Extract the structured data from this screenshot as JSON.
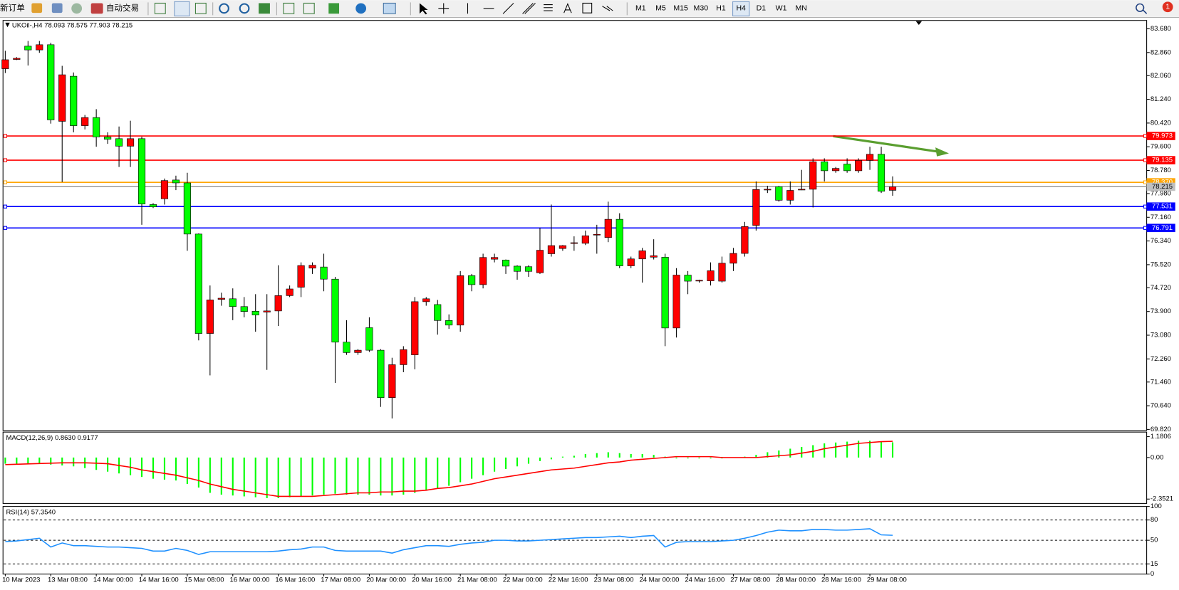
{
  "toolbar": {
    "new_order": "新订单",
    "auto_trading": "自动交易",
    "timeframes": [
      "M1",
      "M5",
      "M15",
      "M30",
      "H1",
      "H4",
      "D1",
      "W1",
      "MN"
    ],
    "selected": "H4",
    "alerts": 1
  },
  "chart_data": [
    {
      "type": "candlestick",
      "title": "UKOil-,H4 78.093 78.575 77.903 78.215",
      "categories": [
        "10 Mar 2023",
        null,
        null,
        null,
        "13 Mar 08:00",
        null,
        null,
        null,
        "14 Mar 00:00",
        null,
        null,
        null,
        "14 Mar 16:00",
        null,
        null,
        null,
        "15 Mar 08:00",
        null,
        null,
        null,
        "16 Mar 00:00",
        null,
        null,
        null,
        "16 Mar 16:00",
        null,
        null,
        null,
        "17 Mar 08:00",
        null,
        null,
        null,
        "20 Mar 00:00",
        null,
        null,
        null,
        "20 Mar 16:00",
        null,
        null,
        null,
        "21 Mar 08:00",
        null,
        null,
        null,
        "22 Mar 00:00",
        null,
        null,
        null,
        "22 Mar 16:00",
        null,
        null,
        null,
        "23 Mar 08:00",
        null,
        null,
        null,
        "24 Mar 00:00",
        null,
        null,
        null,
        "24 Mar 16:00",
        null,
        null,
        null,
        "27 Mar 08:00",
        null,
        null,
        null,
        "28 Mar 00:00",
        null,
        null,
        null,
        "28 Mar 16:00",
        null,
        null,
        null,
        "29 Mar 08:00",
        null,
        null
      ],
      "open": [
        82.3,
        82.62,
        83.08,
        82.95,
        83.13,
        80.48,
        82.04,
        80.33,
        80.61,
        79.94,
        79.88,
        79.62,
        79.88,
        77.6,
        77.8,
        78.45,
        78.35,
        76.58,
        73.14,
        74.32,
        74.34,
        74.07,
        73.91,
        73.88,
        73.92,
        74.45,
        74.74,
        75.4,
        75.44,
        75.02,
        72.84,
        72.48,
        73.34,
        72.56,
        70.92,
        72.06,
        72.4,
        74.24,
        74.14,
        73.59,
        73.43,
        75.14,
        74.83,
        75.71,
        75.68,
        75.47,
        75.45,
        75.24,
        75.9,
        76.08,
        76.26,
        76.26,
        76.55,
        76.46,
        77.09,
        75.48,
        75.72,
        75.78,
        75.78,
        73.33,
        75.16,
        74.96,
        74.96,
        74.95,
        75.57,
        75.91,
        76.88,
        78.11,
        78.22,
        77.75,
        78.11,
        78.13,
        79.08,
        78.77,
        79.0,
        78.77,
        79.13,
        79.34,
        78.093
      ],
      "high": [
        82.92,
        82.7,
        83.26,
        83.26,
        83.2,
        82.4,
        82.17,
        80.7,
        80.9,
        80.1,
        80.3,
        80.5,
        79.95,
        77.65,
        78.5,
        78.6,
        78.7,
        76.6,
        74.8,
        74.55,
        74.7,
        74.4,
        74.5,
        74.5,
        75.5,
        74.8,
        75.6,
        75.6,
        75.9,
        75.1,
        73.6,
        72.6,
        73.7,
        72.6,
        72.3,
        72.7,
        74.4,
        74.4,
        74.3,
        73.8,
        75.3,
        75.2,
        75.9,
        75.9,
        75.7,
        75.5,
        75.5,
        76.8,
        77.6,
        76.2,
        76.5,
        76.7,
        76.9,
        77.7,
        77.3,
        75.8,
        76.1,
        76.4,
        75.9,
        75.4,
        75.3,
        75.0,
        75.6,
        75.8,
        76.1,
        77.0,
        78.4,
        78.25,
        78.25,
        78.4,
        78.8,
        79.2,
        79.2,
        78.9,
        79.2,
        79.2,
        79.6,
        79.6,
        78.575
      ],
      "low": [
        82.15,
        82.6,
        82.41,
        82.85,
        80.4,
        78.38,
        80.1,
        80.2,
        79.6,
        79.7,
        78.9,
        78.9,
        76.9,
        77.48,
        77.6,
        78.1,
        76.0,
        72.9,
        71.69,
        74.1,
        73.6,
        73.7,
        73.2,
        71.88,
        73.4,
        74.4,
        74.4,
        75.2,
        74.6,
        71.43,
        72.4,
        72.4,
        72.5,
        70.6,
        70.2,
        71.8,
        71.9,
        74.1,
        73.1,
        73.3,
        73.2,
        74.6,
        74.7,
        75.6,
        75.2,
        75.0,
        75.1,
        75.2,
        75.8,
        76.0,
        76.0,
        76.2,
        75.9,
        76.3,
        75.4,
        75.4,
        74.9,
        75.7,
        72.7,
        73.0,
        74.5,
        74.9,
        74.8,
        74.9,
        75.3,
        75.8,
        76.7,
        78.0,
        77.7,
        77.6,
        78.1,
        77.5,
        78.4,
        78.7,
        78.7,
        78.7,
        78.8,
        78.0,
        77.903
      ],
      "close": [
        82.61,
        82.66,
        82.95,
        83.13,
        80.53,
        82.09,
        80.33,
        80.61,
        79.94,
        79.86,
        79.62,
        79.88,
        77.62,
        77.52,
        78.43,
        78.35,
        76.58,
        73.14,
        74.3,
        74.36,
        74.07,
        73.9,
        73.78,
        73.92,
        74.45,
        74.68,
        75.49,
        75.5,
        75.02,
        72.84,
        72.48,
        72.56,
        72.56,
        70.92,
        72.06,
        72.58,
        74.24,
        74.34,
        73.59,
        73.43,
        75.14,
        74.83,
        75.77,
        75.77,
        75.47,
        75.29,
        75.29,
        76.02,
        76.18,
        76.18,
        76.28,
        76.52,
        76.57,
        77.09,
        75.48,
        75.72,
        76.0,
        75.83,
        73.33,
        75.16,
        74.95,
        74.98,
        75.31,
        75.57,
        75.91,
        76.84,
        78.12,
        78.13,
        77.75,
        78.09,
        78.13,
        79.08,
        78.77,
        78.85,
        78.77,
        79.13,
        79.34,
        78.06,
        78.215
      ],
      "up_color": "#ff0000",
      "down_color": "#00ff00",
      "ylim": [
        69.78,
        83.97
      ],
      "yticks": [
        {
          "value": 83.68,
          "label": "83.680"
        },
        {
          "value": 82.86,
          "label": "82.860"
        },
        {
          "value": 82.06,
          "label": "82.060"
        },
        {
          "value": 81.24,
          "label": "81.240"
        },
        {
          "value": 80.42,
          "label": "80.420"
        },
        {
          "value": 79.6,
          "label": "79.600"
        },
        {
          "value": 78.78,
          "label": "78.780"
        },
        {
          "value": 77.98,
          "label": "77.980"
        },
        {
          "value": 77.16,
          "label": "77.160"
        },
        {
          "value": 76.34,
          "label": "76.340"
        },
        {
          "value": 75.52,
          "label": "75.520"
        },
        {
          "value": 74.72,
          "label": "74.720"
        },
        {
          "value": 73.9,
          "label": "73.900"
        },
        {
          "value": 73.08,
          "label": "73.080"
        },
        {
          "value": 72.26,
          "label": "72.260"
        },
        {
          "value": 71.46,
          "label": "71.460"
        },
        {
          "value": 70.64,
          "label": "70.640"
        },
        {
          "value": 69.82,
          "label": "69.820"
        }
      ],
      "levels": [
        {
          "value": 79.973,
          "color": "#ff0000"
        },
        {
          "value": 79.135,
          "color": "#ff0000"
        },
        {
          "value": 78.37,
          "label": "78.370",
          "color": "#ffa500"
        },
        {
          "value": 77.531,
          "color": "#0000ff"
        },
        {
          "value": 76.791,
          "color": "#0000ff"
        }
      ],
      "last_price": 78.215
    },
    {
      "type": "macd",
      "title": "MACD(12,26,9) 0.8630 0.9177",
      "series": [
        {
          "style": "histogram",
          "color": "#00ff00",
          "values": [
            -0.35,
            -0.35,
            -0.35,
            -0.35,
            -0.4,
            -0.45,
            -0.5,
            -0.6,
            -0.7,
            -0.8,
            -0.9,
            -1.0,
            -1.1,
            -1.2,
            -1.25,
            -1.3,
            -1.5,
            -1.7,
            -2.0,
            -2.1,
            -2.15,
            -2.2,
            -2.25,
            -2.3,
            -2.3,
            -2.25,
            -2.2,
            -2.15,
            -2.1,
            -2.05,
            -2.1,
            -2.1,
            -2.1,
            -2.15,
            -2.15,
            -2.1,
            -2.0,
            -1.85,
            -1.75,
            -1.6,
            -1.4,
            -1.2,
            -1.0,
            -0.8,
            -0.65,
            -0.5,
            -0.35,
            -0.2,
            -0.1,
            0.05,
            0.1,
            0.2,
            0.25,
            0.3,
            0.25,
            0.2,
            0.2,
            0.15,
            0.05,
            -0.05,
            -0.05,
            -0.05,
            -0.05,
            -0.05,
            0.0,
            0.05,
            0.15,
            0.3,
            0.4,
            0.5,
            0.6,
            0.7,
            0.8,
            0.85,
            0.9,
            0.95,
            0.95,
            0.9,
            0.86
          ]
        },
        {
          "style": "line",
          "color": "#ff0000",
          "values": [
            -0.4,
            -0.38,
            -0.36,
            -0.34,
            -0.32,
            -0.3,
            -0.3,
            -0.3,
            -0.32,
            -0.35,
            -0.45,
            -0.55,
            -0.7,
            -0.8,
            -0.9,
            -1.0,
            -1.15,
            -1.3,
            -1.5,
            -1.65,
            -1.8,
            -1.9,
            -2.0,
            -2.1,
            -2.2,
            -2.2,
            -2.2,
            -2.2,
            -2.15,
            -2.1,
            -2.05,
            -2.0,
            -2.0,
            -1.95,
            -1.95,
            -1.9,
            -1.9,
            -1.85,
            -1.75,
            -1.7,
            -1.6,
            -1.5,
            -1.35,
            -1.2,
            -1.1,
            -1.0,
            -0.9,
            -0.8,
            -0.7,
            -0.65,
            -0.6,
            -0.5,
            -0.4,
            -0.3,
            -0.25,
            -0.15,
            -0.1,
            -0.05,
            0.0,
            0.05,
            0.05,
            0.05,
            0.05,
            0.0,
            0.0,
            0.0,
            0.0,
            0.05,
            0.1,
            0.15,
            0.25,
            0.35,
            0.5,
            0.6,
            0.7,
            0.8,
            0.85,
            0.9,
            0.92
          ]
        }
      ],
      "ylim": [
        -2.6,
        1.44
      ],
      "yticks": [
        1.1806,
        {
          "value": 0,
          "label": "0.00"
        },
        -2.3521
      ]
    },
    {
      "type": "line",
      "title": "RSI(14) 57.3540",
      "series": [
        {
          "color": "#1e90ff",
          "values": [
            48,
            49,
            51,
            53,
            40,
            46,
            42,
            42,
            41,
            40,
            40,
            39,
            38,
            34,
            34,
            38,
            35,
            29,
            33,
            33,
            33,
            33,
            33,
            33,
            34,
            36,
            37,
            40,
            40,
            35,
            34,
            34,
            34,
            34,
            31,
            36,
            39,
            42,
            42,
            41,
            44,
            46,
            47,
            50,
            50,
            49,
            49,
            50,
            51,
            52,
            53,
            54,
            54,
            55,
            56,
            54,
            56,
            57,
            40,
            47,
            48,
            48,
            48,
            49,
            50,
            53,
            57,
            62,
            65,
            64,
            64,
            66,
            66,
            65,
            65,
            66,
            67,
            58,
            57.35
          ]
        }
      ],
      "ylim": [
        0,
        100
      ],
      "yticks": [
        100,
        80,
        50,
        15,
        0
      ],
      "levels": [
        80,
        50,
        15
      ]
    }
  ]
}
